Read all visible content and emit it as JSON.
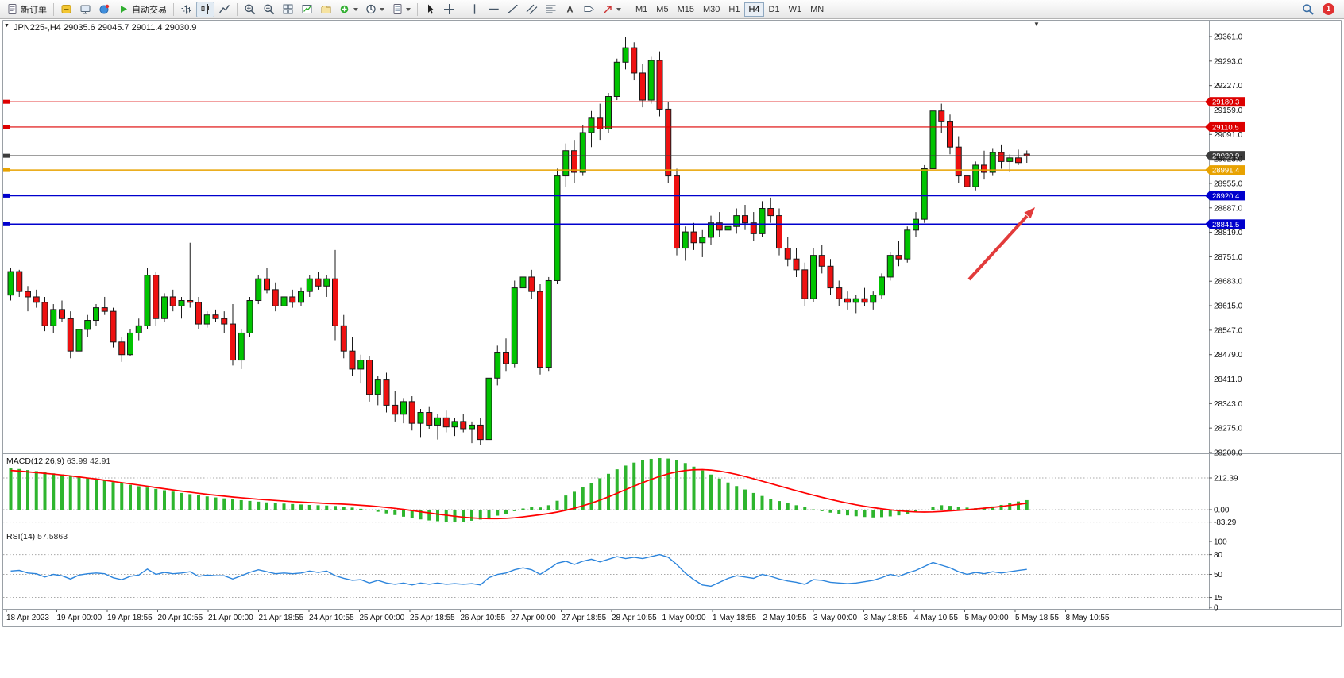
{
  "toolbar": {
    "new_order": "新订单",
    "autotrading": "自动交易",
    "timeframes": [
      "M1",
      "M5",
      "M15",
      "M30",
      "H1",
      "H4",
      "D1",
      "W1",
      "MN"
    ],
    "active_timeframe": "H4",
    "notification_count": "1"
  },
  "chart_data": {
    "type": "candlestick",
    "title": "JPN225-,H4",
    "title_line": "JPN225-,H4 29035.6 29045.7 29011.4 29030.9",
    "symbol": "JPN225-",
    "timeframe": "H4",
    "current_ohlc": {
      "open": 29035.6,
      "high": 29045.7,
      "low": 29011.4,
      "close": 29030.9
    },
    "ylim": [
      28209.0,
      29361.0
    ],
    "y_axis_ticks": [
      "29361.0",
      "29293.0",
      "29227.0",
      "29159.0",
      "29091.0",
      "29023.0",
      "28955.0",
      "28887.0",
      "28819.0",
      "28751.0",
      "28683.0",
      "28615.0",
      "28547.0",
      "28479.0",
      "28411.0",
      "28343.0",
      "28275.0",
      "28209.0"
    ],
    "x_labels": [
      "18 Apr 2023",
      "19 Apr 00:00",
      "19 Apr 18:55",
      "20 Apr 10:55",
      "21 Apr 00:00",
      "21 Apr 18:55",
      "24 Apr 10:55",
      "25 Apr 00:00",
      "25 Apr 18:55",
      "26 Apr 10:55",
      "27 Apr 00:00",
      "27 Apr 18:55",
      "28 Apr 10:55",
      "1 May 00:00",
      "1 May 18:55",
      "2 May 10:55",
      "3 May 00:00",
      "3 May 18:55",
      "4 May 10:55",
      "5 May 00:00",
      "5 May 18:55",
      "8 May 10:55"
    ],
    "hlines": [
      {
        "price": 29180.3,
        "label": "29180.3",
        "color": "#dd0000",
        "width": 1.2
      },
      {
        "price": 29110.5,
        "label": "29110.5",
        "color": "#dd0000",
        "width": 1.2
      },
      {
        "price": 29030.9,
        "label": "29030.9",
        "color": "#3c3c3c",
        "width": 1.2
      },
      {
        "price": 28991.4,
        "label": "28991.4",
        "color": "#e8a200",
        "width": 1.6
      },
      {
        "price": 28920.4,
        "label": "28920.4",
        "color": "#0000cd",
        "width": 1.6
      },
      {
        "price": 28841.5,
        "label": "28841.5",
        "color": "#0000cd",
        "width": 1.6
      }
    ],
    "candles": [
      [
        28645,
        28720,
        28630,
        28710
      ],
      [
        28710,
        28715,
        28640,
        28655
      ],
      [
        28655,
        28670,
        28600,
        28640
      ],
      [
        28640,
        28660,
        28610,
        28625
      ],
      [
        28625,
        28640,
        28545,
        28560
      ],
      [
        28560,
        28620,
        28540,
        28605
      ],
      [
        28605,
        28630,
        28570,
        28580
      ],
      [
        28580,
        28600,
        28470,
        28490
      ],
      [
        28490,
        28560,
        28480,
        28550
      ],
      [
        28550,
        28590,
        28530,
        28575
      ],
      [
        28575,
        28620,
        28560,
        28610
      ],
      [
        28610,
        28640,
        28590,
        28600
      ],
      [
        28600,
        28610,
        28500,
        28515
      ],
      [
        28515,
        28530,
        28460,
        28480
      ],
      [
        28480,
        28550,
        28475,
        28540
      ],
      [
        28540,
        28580,
        28520,
        28560
      ],
      [
        28560,
        28720,
        28550,
        28700
      ],
      [
        28700,
        28710,
        28560,
        28580
      ],
      [
        28580,
        28650,
        28570,
        28640
      ],
      [
        28640,
        28660,
        28600,
        28615
      ],
      [
        28615,
        28640,
        28580,
        28630
      ],
      [
        28630,
        28790,
        28610,
        28625
      ],
      [
        28625,
        28640,
        28550,
        28565
      ],
      [
        28565,
        28600,
        28555,
        28590
      ],
      [
        28590,
        28605,
        28570,
        28580
      ],
      [
        28580,
        28600,
        28540,
        28565
      ],
      [
        28565,
        28620,
        28450,
        28465
      ],
      [
        28465,
        28550,
        28440,
        28540
      ],
      [
        28540,
        28640,
        28530,
        28630
      ],
      [
        28630,
        28700,
        28620,
        28690
      ],
      [
        28690,
        28720,
        28650,
        28660
      ],
      [
        28660,
        28680,
        28600,
        28615
      ],
      [
        28615,
        28650,
        28600,
        28640
      ],
      [
        28640,
        28660,
        28610,
        28625
      ],
      [
        28625,
        28665,
        28615,
        28655
      ],
      [
        28655,
        28700,
        28640,
        28690
      ],
      [
        28690,
        28710,
        28660,
        28670
      ],
      [
        28670,
        28700,
        28640,
        28690
      ],
      [
        28690,
        28770,
        28520,
        28560
      ],
      [
        28560,
        28590,
        28470,
        28490
      ],
      [
        28490,
        28530,
        28420,
        28440
      ],
      [
        28440,
        28480,
        28400,
        28465
      ],
      [
        28465,
        28475,
        28350,
        28370
      ],
      [
        28370,
        28420,
        28340,
        28410
      ],
      [
        28410,
        28430,
        28320,
        28340
      ],
      [
        28340,
        28380,
        28295,
        28315
      ],
      [
        28315,
        28360,
        28290,
        28350
      ],
      [
        28350,
        28365,
        28270,
        28290
      ],
      [
        28290,
        28330,
        28250,
        28320
      ],
      [
        28320,
        28335,
        28275,
        28285
      ],
      [
        28285,
        28315,
        28245,
        28305
      ],
      [
        28305,
        28325,
        28265,
        28280
      ],
      [
        28280,
        28305,
        28255,
        28295
      ],
      [
        28295,
        28315,
        28265,
        28275
      ],
      [
        28275,
        28295,
        28235,
        28285
      ],
      [
        28285,
        28305,
        28230,
        28245
      ],
      [
        28245,
        28425,
        28240,
        28415
      ],
      [
        28415,
        28505,
        28395,
        28485
      ],
      [
        28485,
        28525,
        28435,
        28455
      ],
      [
        28455,
        28685,
        28445,
        28665
      ],
      [
        28665,
        28725,
        28645,
        28695
      ],
      [
        28695,
        28715,
        28635,
        28655
      ],
      [
        28655,
        28675,
        28425,
        28445
      ],
      [
        28445,
        28695,
        28435,
        28685
      ],
      [
        28685,
        28995,
        28675,
        28975
      ],
      [
        28975,
        29065,
        28945,
        29045
      ],
      [
        29045,
        29075,
        28955,
        28985
      ],
      [
        28985,
        29115,
        28975,
        29095
      ],
      [
        29095,
        29155,
        29055,
        29135
      ],
      [
        29135,
        29175,
        29075,
        29105
      ],
      [
        29105,
        29205,
        29095,
        29195
      ],
      [
        29195,
        29300,
        29185,
        29290
      ],
      [
        29290,
        29361,
        29270,
        29330
      ],
      [
        29330,
        29345,
        29240,
        29260
      ],
      [
        29260,
        29285,
        29165,
        29185
      ],
      [
        29185,
        29305,
        29175,
        29295
      ],
      [
        29295,
        29320,
        29140,
        29160
      ],
      [
        29160,
        29180,
        28955,
        28975
      ],
      [
        28975,
        28995,
        28755,
        28775
      ],
      [
        28775,
        28835,
        28740,
        28820
      ],
      [
        28820,
        28845,
        28770,
        28790
      ],
      [
        28790,
        28825,
        28750,
        28805
      ],
      [
        28805,
        28865,
        28785,
        28845
      ],
      [
        28845,
        28875,
        28805,
        28825
      ],
      [
        28825,
        28855,
        28785,
        28835
      ],
      [
        28835,
        28885,
        28815,
        28865
      ],
      [
        28865,
        28895,
        28825,
        28845
      ],
      [
        28845,
        28875,
        28795,
        28815
      ],
      [
        28815,
        28905,
        28805,
        28885
      ],
      [
        28885,
        28915,
        28845,
        28865
      ],
      [
        28865,
        28885,
        28755,
        28775
      ],
      [
        28775,
        28805,
        28725,
        28745
      ],
      [
        28745,
        28775,
        28695,
        28715
      ],
      [
        28715,
        28735,
        28615,
        28635
      ],
      [
        28635,
        28775,
        28625,
        28755
      ],
      [
        28755,
        28785,
        28705,
        28725
      ],
      [
        28725,
        28745,
        28645,
        28665
      ],
      [
        28665,
        28685,
        28615,
        28635
      ],
      [
        28635,
        28655,
        28605,
        28625
      ],
      [
        28625,
        28645,
        28595,
        28635
      ],
      [
        28635,
        28665,
        28615,
        28625
      ],
      [
        28625,
        28655,
        28605,
        28645
      ],
      [
        28645,
        28705,
        28635,
        28695
      ],
      [
        28695,
        28765,
        28685,
        28755
      ],
      [
        28755,
        28795,
        28725,
        28745
      ],
      [
        28745,
        28835,
        28735,
        28825
      ],
      [
        28825,
        28875,
        28805,
        28855
      ],
      [
        28855,
        29005,
        28845,
        28995
      ],
      [
        28995,
        29165,
        28985,
        29155
      ],
      [
        29155,
        29175,
        29095,
        29125
      ],
      [
        29125,
        29145,
        29035,
        29055
      ],
      [
        29055,
        29085,
        28955,
        28975
      ],
      [
        28975,
        29005,
        28925,
        28945
      ],
      [
        28945,
        29015,
        28935,
        29005
      ],
      [
        29005,
        29045,
        28965,
        28985
      ],
      [
        28985,
        29050,
        28975,
        29040
      ],
      [
        29040,
        29060,
        28995,
        29015
      ],
      [
        29015,
        29035,
        28985,
        29025
      ],
      [
        29025,
        29048,
        29005,
        29012
      ],
      [
        29035.6,
        29045.7,
        29011.4,
        29030.9
      ]
    ],
    "indicators": {
      "macd": {
        "label": "MACD(12,26,9)",
        "values": "63.99 42.91",
        "scale_labels": [
          "212.39",
          "0.00",
          "-83.29"
        ],
        "histogram": [
          280,
          272,
          265,
          258,
          250,
          243,
          236,
          228,
          220,
          212,
          203,
          194,
          185,
          176,
          166,
          157,
          148,
          139,
          130,
          121,
          112,
          104,
          96,
          89,
          82,
          76,
          70,
          64,
          59,
          54,
          49,
          45,
          41,
          38,
          35,
          32,
          30,
          28,
          25,
          20,
          14,
          6,
          -4,
          -14,
          -25,
          -36,
          -47,
          -57,
          -65,
          -72,
          -77,
          -81,
          -83,
          -80,
          -74,
          -66,
          -54,
          -40,
          -28,
          -10,
          8,
          20,
          15,
          30,
          60,
          95,
          120,
          150,
          180,
          210,
          240,
          270,
          295,
          315,
          330,
          340,
          345,
          342,
          330,
          312,
          288,
          262,
          235,
          208,
          182,
          158,
          135,
          112,
          92,
          74,
          58,
          44,
          30,
          16,
          2,
          -10,
          -20,
          -30,
          -38,
          -44,
          -49,
          -52,
          -50,
          -45,
          -38,
          -28,
          -15,
          0,
          18,
          30,
          26,
          20,
          14,
          10,
          14,
          22,
          32,
          44,
          55,
          64
        ],
        "signal": [
          262,
          258,
          253,
          248,
          243,
          238,
          232,
          226,
          219,
          212,
          205,
          197,
          189,
          181,
          173,
          165,
          157,
          148,
          140,
          132,
          124,
          117,
          110,
          103,
          97,
          91,
          85,
          80,
          75,
          70,
          66,
          62,
          58,
          54,
          51,
          48,
          45,
          42,
          40,
          37,
          34,
          30,
          26,
          21,
          15,
          9,
          2,
          -6,
          -14,
          -22,
          -30,
          -37,
          -44,
          -50,
          -55,
          -58,
          -60,
          -60,
          -58,
          -54,
          -48,
          -41,
          -34,
          -26,
          -16,
          -4,
          10,
          26,
          44,
          64,
          86,
          110,
          134,
          158,
          181,
          203,
          223,
          240,
          253,
          262,
          267,
          268,
          265,
          258,
          248,
          236,
          222,
          207,
          191,
          175,
          159,
          143,
          127,
          112,
          97,
          83,
          69,
          56,
          44,
          33,
          23,
          14,
          6,
          -1,
          -7,
          -12,
          -15,
          -16,
          -15,
          -12,
          -8,
          -4,
          0,
          5,
          10,
          16,
          22,
          29,
          36,
          43
        ]
      },
      "rsi": {
        "label": "RSI(14)",
        "values": "57.5863",
        "scale_labels": [
          "100",
          "80",
          "50",
          "15",
          "0"
        ],
        "levels": [
          80,
          50,
          15
        ],
        "line": [
          55,
          56,
          52,
          51,
          46,
          50,
          48,
          43,
          49,
          51,
          52,
          51,
          45,
          42,
          47,
          49,
          58,
          50,
          53,
          51,
          52,
          54,
          47,
          49,
          48,
          48,
          43,
          48,
          53,
          57,
          54,
          51,
          52,
          51,
          52,
          55,
          53,
          55,
          48,
          44,
          41,
          42,
          37,
          41,
          37,
          35,
          37,
          34,
          37,
          35,
          37,
          35,
          36,
          35,
          36,
          34,
          45,
          50,
          52,
          57,
          60,
          57,
          50,
          58,
          67,
          70,
          65,
          70,
          73,
          69,
          73,
          77,
          74,
          76,
          74,
          77,
          80,
          76,
          65,
          52,
          42,
          34,
          32,
          38,
          44,
          48,
          46,
          44,
          50,
          47,
          43,
          40,
          38,
          35,
          42,
          41,
          38,
          37,
          36,
          37,
          39,
          41,
          45,
          50,
          47,
          52,
          56,
          62,
          68,
          64,
          60,
          54,
          50,
          53,
          51,
          54,
          52,
          54,
          56,
          57.6
        ]
      }
    },
    "annotations": [
      {
        "type": "arrow",
        "direction": "up-right",
        "color": "#e23b3b"
      }
    ],
    "colors": {
      "bull": "#00c400",
      "bear": "#ee1111",
      "wick": "#1a1a1a",
      "macd_hist": "#2eb52e",
      "macd_signal": "#ff0000",
      "rsi_line": "#2d85dc",
      "level_red": "#dd0000",
      "level_blue": "#0000cd",
      "level_orange": "#e8a200"
    }
  }
}
